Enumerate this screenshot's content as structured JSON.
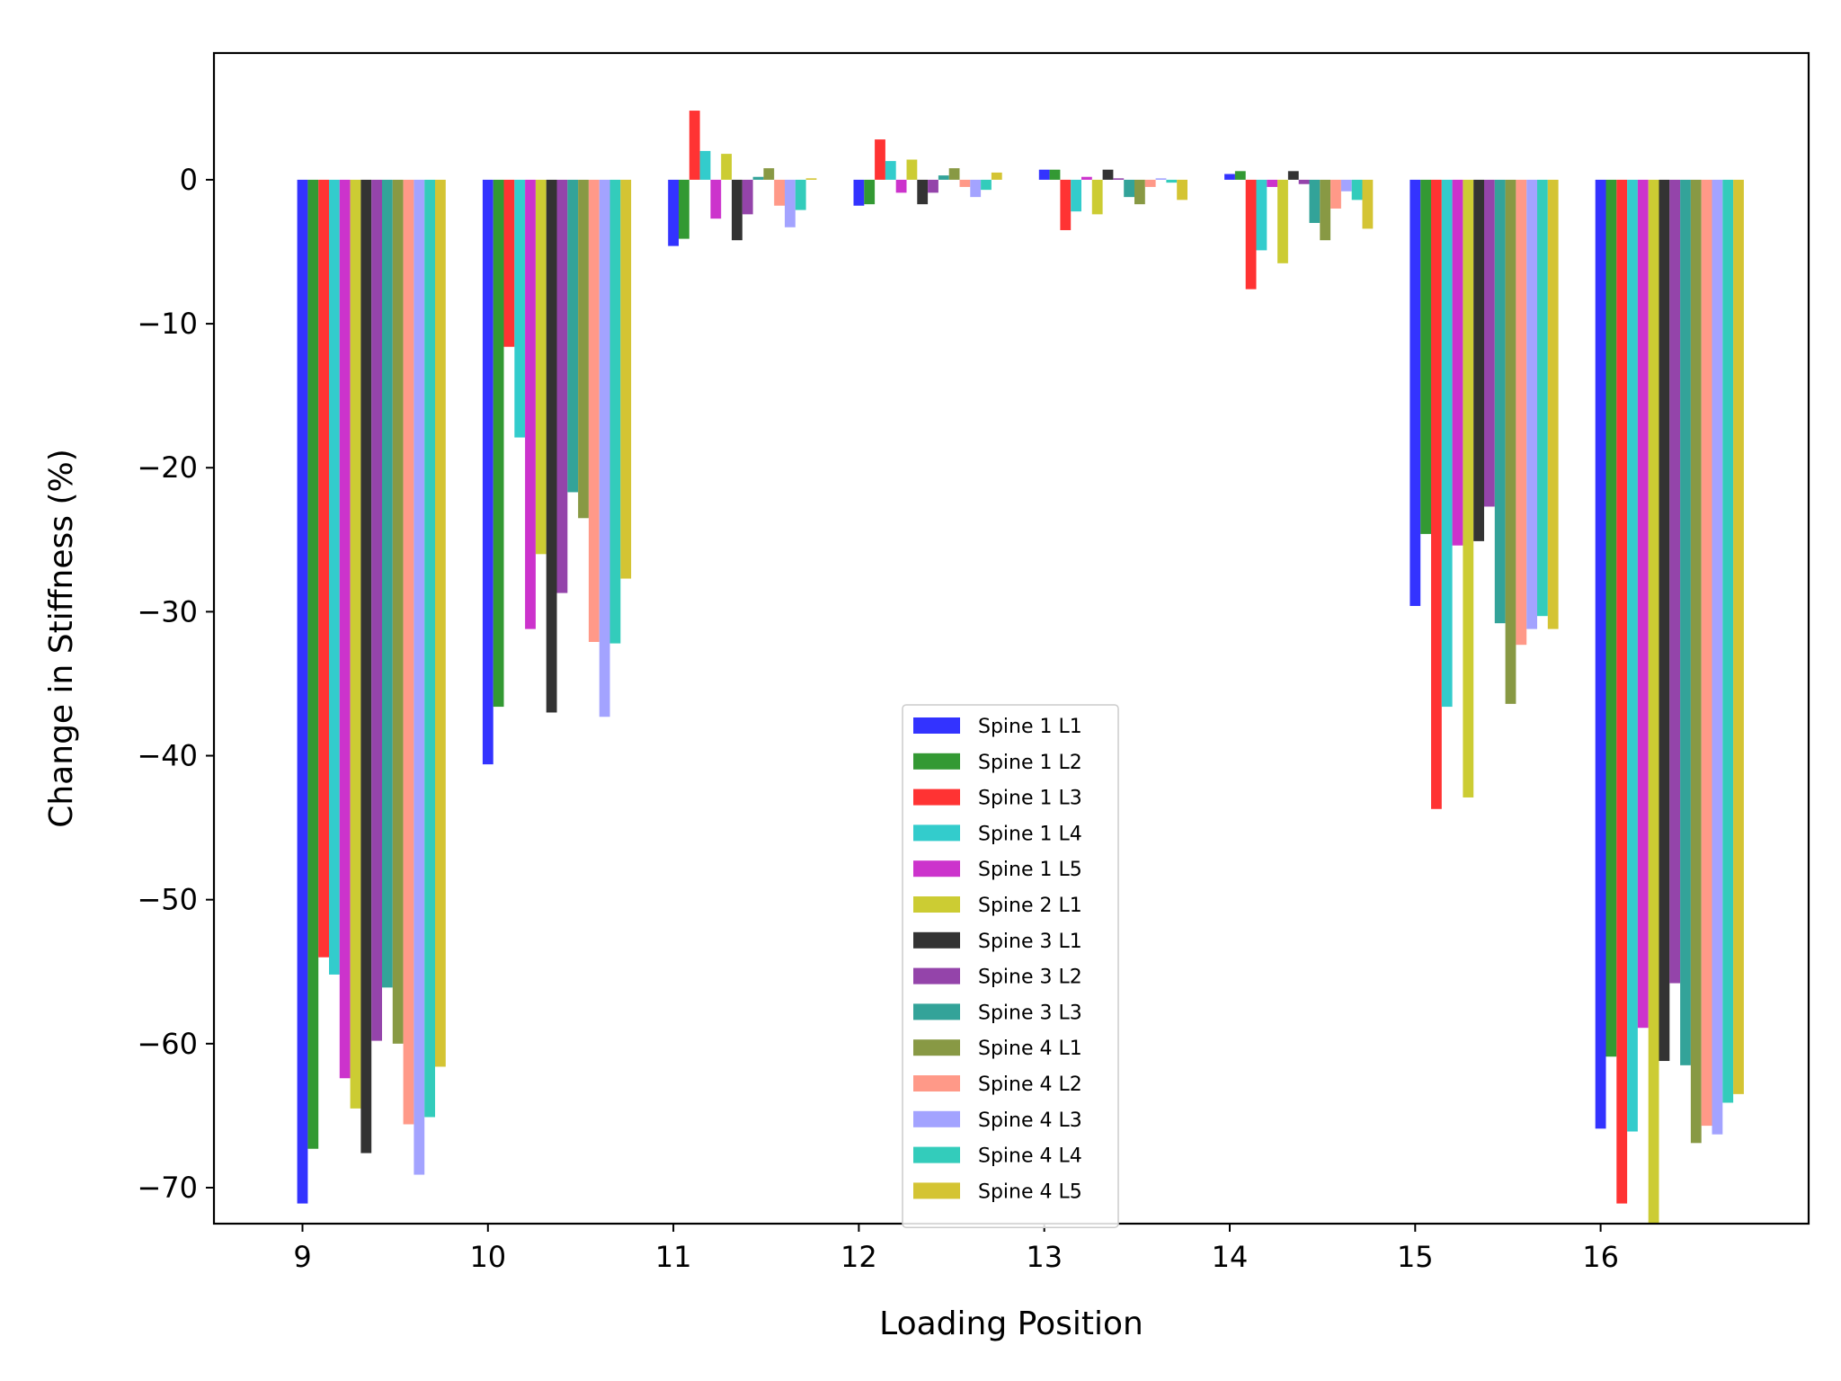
{
  "chart_data": {
    "type": "bar",
    "title": "",
    "xlabel": "Loading Position",
    "ylabel": "Change in Stiffness (%)",
    "categories": [
      "9",
      "10",
      "11",
      "12",
      "13",
      "14",
      "15",
      "16"
    ],
    "ylim": [
      -72.5,
      8.8
    ],
    "yticks": [
      0,
      -10,
      -20,
      -30,
      -40,
      -50,
      -60,
      -70
    ],
    "ytick_labels": [
      "0",
      "−10",
      "−20",
      "−30",
      "−40",
      "−50",
      "−60",
      "−70"
    ],
    "legend_position": "lower-center",
    "grid": false,
    "series": [
      {
        "name": "Spine 1 L1",
        "color": "#3333ff",
        "values": [
          -71.1,
          -40.6,
          -4.6,
          -1.8,
          0.7,
          0.4,
          -29.6,
          -65.9
        ]
      },
      {
        "name": "Spine 1 L2",
        "color": "#339933",
        "values": [
          -67.3,
          -36.6,
          -4.1,
          -1.7,
          0.7,
          0.6,
          -24.6,
          -60.9
        ]
      },
      {
        "name": "Spine 1 L3",
        "color": "#ff3333",
        "values": [
          -54.0,
          -11.6,
          4.8,
          2.8,
          -3.5,
          -7.6,
          -43.7,
          -71.1
        ]
      },
      {
        "name": "Spine 1 L4",
        "color": "#33cccc",
        "values": [
          -55.2,
          -17.9,
          2.0,
          1.3,
          -2.2,
          -4.9,
          -36.6,
          -66.1
        ]
      },
      {
        "name": "Spine 1 L5",
        "color": "#cc33cc",
        "values": [
          -62.4,
          -31.2,
          -2.7,
          -0.9,
          0.2,
          -0.5,
          -25.4,
          -58.9
        ]
      },
      {
        "name": "Spine 2 L1",
        "color": "#cccc33",
        "values": [
          -64.5,
          -26.0,
          1.8,
          1.4,
          -2.4,
          -5.8,
          -42.9,
          -72.5
        ]
      },
      {
        "name": "Spine 3 L1",
        "color": "#333333",
        "values": [
          -67.6,
          -37.0,
          -4.2,
          -1.7,
          0.7,
          0.6,
          -25.1,
          -61.2
        ]
      },
      {
        "name": "Spine 3 L2",
        "color": "#9444aa",
        "values": [
          -59.8,
          -28.7,
          -2.4,
          -0.9,
          0.1,
          -0.3,
          -22.7,
          -55.8
        ]
      },
      {
        "name": "Spine 3 L3",
        "color": "#33a399",
        "values": [
          -56.1,
          -21.7,
          0.2,
          0.3,
          -1.2,
          -3.0,
          -30.8,
          -61.5
        ]
      },
      {
        "name": "Spine 4 L1",
        "color": "#889944",
        "values": [
          -60.0,
          -23.5,
          0.8,
          0.8,
          -1.7,
          -4.2,
          -36.4,
          -66.9
        ]
      },
      {
        "name": "Spine 4 L2",
        "color": "#ff9988",
        "values": [
          -65.6,
          -32.1,
          -1.8,
          -0.5,
          -0.5,
          -2.0,
          -32.3,
          -65.7
        ]
      },
      {
        "name": "Spine 4 L3",
        "color": "#a3a3ff",
        "values": [
          -69.1,
          -37.3,
          -3.3,
          -1.2,
          0.1,
          -0.8,
          -31.2,
          -66.3
        ]
      },
      {
        "name": "Spine 4 L4",
        "color": "#33ccbb",
        "values": [
          -65.1,
          -32.2,
          -2.1,
          -0.7,
          -0.2,
          -1.4,
          -30.3,
          -64.1
        ]
      },
      {
        "name": "Spine 4 L5",
        "color": "#d4c433",
        "values": [
          -61.6,
          -27.7,
          0.1,
          0.5,
          -1.4,
          -3.4,
          -31.2,
          -63.5
        ]
      }
    ]
  }
}
